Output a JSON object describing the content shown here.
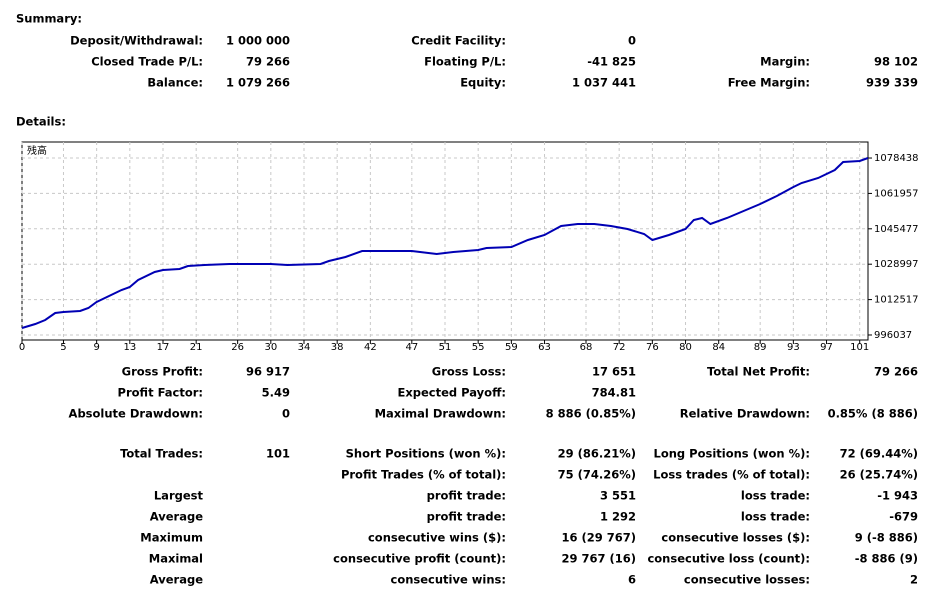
{
  "summary": {
    "title": "Summary:",
    "rows": [
      [
        "Deposit/Withdrawal:",
        "1 000 000",
        "Credit Facility:",
        "0",
        null,
        null
      ],
      [
        "Closed Trade P/L:",
        "79 266",
        "Floating P/L:",
        "-41 825",
        "Margin:",
        "98 102"
      ],
      [
        "Balance:",
        "1 079 266",
        "Equity:",
        "1 037 441",
        "Free Margin:",
        "939 339"
      ]
    ]
  },
  "details": {
    "title": "Details:",
    "rows": [
      [
        "Gross Profit:",
        "96 917",
        "Gross Loss:",
        "17 651",
        "Total Net Profit:",
        "79 266"
      ],
      [
        "Profit Factor:",
        "5.49",
        "Expected Payoff:",
        "784.81",
        null,
        null
      ],
      [
        "Absolute Drawdown:",
        "0",
        "Maximal Drawdown:",
        "8 886 (0.85%)",
        "Relative Drawdown:",
        "0.85% (8 886)"
      ],
      [
        "Total Trades:",
        "101",
        "Short Positions (won %):",
        "29 (86.21%)",
        "Long Positions (won %):",
        "72 (69.44%)"
      ],
      [
        null,
        null,
        "Profit Trades (% of total):",
        "75 (74.26%)",
        "Loss trades (% of total):",
        "26 (25.74%)"
      ],
      [
        "Largest",
        null,
        "profit trade:",
        "3 551",
        "loss trade:",
        "-1 943"
      ],
      [
        "Average",
        null,
        "profit trade:",
        "1 292",
        "loss trade:",
        "-679"
      ],
      [
        "Maximum",
        null,
        "consecutive wins ($):",
        "16 (29 767)",
        "consecutive losses ($):",
        "9 (-8 886)"
      ],
      [
        "Maximal",
        null,
        "consecutive profit (count):",
        "29 767 (16)",
        "consecutive loss (count):",
        "-8 886 (9)"
      ],
      [
        "Average",
        null,
        "consecutive wins:",
        "6",
        "consecutive losses:",
        "2"
      ]
    ]
  },
  "chart_data": {
    "type": "line",
    "title": "残高",
    "color": "#0000b4",
    "grid": true,
    "xlim": [
      0,
      102
    ],
    "xticks": [
      0,
      5,
      9,
      13,
      17,
      21,
      26,
      30,
      34,
      38,
      42,
      47,
      51,
      55,
      59,
      63,
      68,
      72,
      76,
      80,
      84,
      89,
      93,
      97,
      101
    ],
    "ylim": [
      993700,
      1085900
    ],
    "yticks": [
      996037,
      1012517,
      1028997,
      1045477,
      1061957,
      1078438
    ],
    "x": [
      0,
      1.6,
      2.8,
      4,
      5,
      7,
      8,
      9,
      11,
      12,
      13,
      14,
      16,
      17,
      19,
      20,
      22,
      25,
      30,
      32,
      36,
      37,
      39,
      41,
      45,
      47,
      49,
      50,
      52,
      55,
      56,
      59,
      61,
      63,
      65,
      67,
      69,
      71,
      73,
      75,
      76,
      78,
      80,
      81,
      82,
      83,
      85,
      87,
      89,
      91,
      93,
      94,
      96,
      98,
      99,
      101,
      102
    ],
    "values": [
      999300,
      1001160,
      1003020,
      1006280,
      1006750,
      1007210,
      1008610,
      1011400,
      1015130,
      1016990,
      1018390,
      1021650,
      1025370,
      1026300,
      1026770,
      1028160,
      1028630,
      1029100,
      1029100,
      1028630,
      1029100,
      1030490,
      1032350,
      1035150,
      1035150,
      1035150,
      1034220,
      1033750,
      1034680,
      1035610,
      1036540,
      1037000,
      1040260,
      1042590,
      1046790,
      1047720,
      1047720,
      1046780,
      1045390,
      1043060,
      1040270,
      1042590,
      1045390,
      1049580,
      1050510,
      1047720,
      1050510,
      1053770,
      1057030,
      1060760,
      1064940,
      1066810,
      1069140,
      1072860,
      1076590,
      1077050,
      1078440
    ]
  }
}
